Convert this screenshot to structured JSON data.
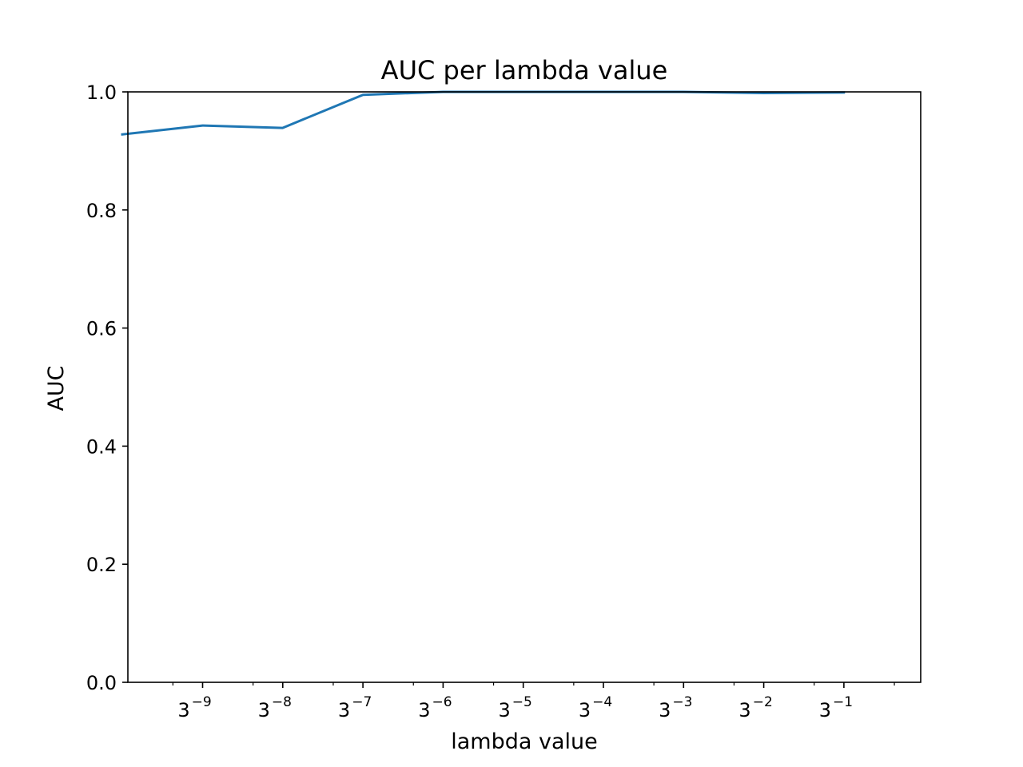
{
  "chart_data": {
    "type": "line",
    "title": "AUC per lambda value",
    "xlabel": "lambda value",
    "ylabel": "AUC",
    "x_scale": "log3",
    "x_tick_base": "3",
    "x_tick_exponents": [
      "−9",
      "−8",
      "−7",
      "−6",
      "−5",
      "−4",
      "−3",
      "−2",
      "−1"
    ],
    "y_ticks": [
      "0.0",
      "0.2",
      "0.4",
      "0.6",
      "0.8",
      "1.0"
    ],
    "ylim": [
      0,
      1
    ],
    "grid": false,
    "series": [
      {
        "color": "#1f77b4",
        "x": [
          1.69e-05,
          5.08e-05,
          0.000152,
          0.000457,
          0.00137,
          0.00412,
          0.0123,
          0.037,
          0.111,
          0.333
        ],
        "y": [
          0.928,
          0.943,
          0.939,
          0.995,
          1.0,
          1.0,
          1.0,
          1.0,
          0.998,
          0.999
        ]
      }
    ]
  }
}
